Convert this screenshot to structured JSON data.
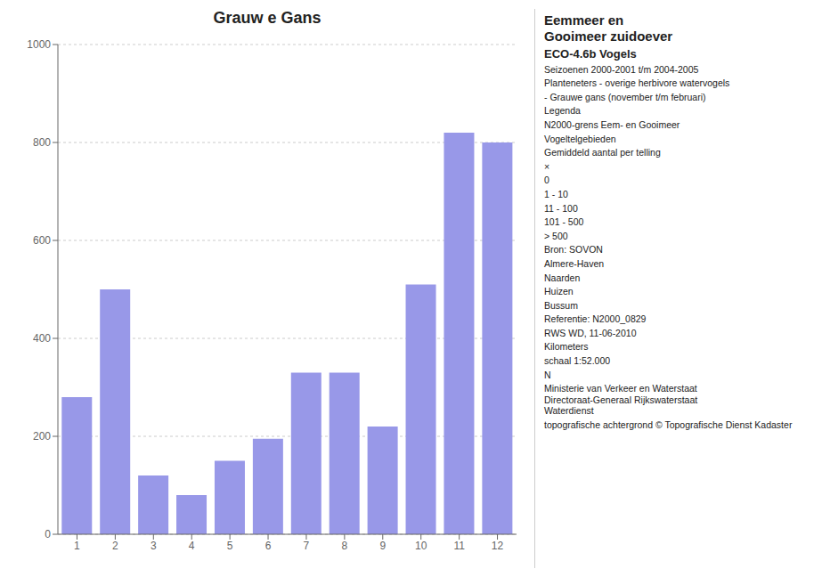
{
  "chart_data": {
    "type": "bar",
    "title": "Grauw e Gans",
    "categories": [
      1,
      2,
      3,
      4,
      5,
      6,
      7,
      8,
      9,
      10,
      11,
      12
    ],
    "values": [
      280,
      500,
      120,
      80,
      150,
      195,
      330,
      330,
      220,
      510,
      820,
      800
    ],
    "color": "#9898e8",
    "ylim": [
      0,
      1000
    ],
    "yticks": [
      0,
      200,
      400,
      600,
      800,
      1000
    ],
    "grid": true,
    "annotations": [
      "Eemmeer en\nGooimeer zuidoever",
      "ECO-4.6b Vogels",
      "Seizoenen 2000-2001 t/m 2004-2005",
      "Planteneters - overige herbivore watervogels",
      "- Grauwe gans (november t/m februari)",
      "Legenda",
      "N2000-grens Eem- en Gooimeer",
      "Vogeltelgebieden",
      "Gemiddeld aantal per telling",
      "×",
      "0",
      "1 - 10",
      "11 - 100",
      "101 - 500",
      "> 500",
      "Bron: SOVON",
      "Almere-Haven",
      "Naarden",
      "Huizen",
      "Bussum",
      "Referentie:  N2000_0829",
      "RWS WD, 11-06-2010",
      "Kilometers",
      "schaal    1:52.000",
      "N",
      "Ministerie van Verkeer en Waterstaat\nDirectoraat-Generaal Rijkswaterstaat\nWaterdienst",
      "topografische achtergrond © Topografische Dienst Kadaster"
    ]
  }
}
